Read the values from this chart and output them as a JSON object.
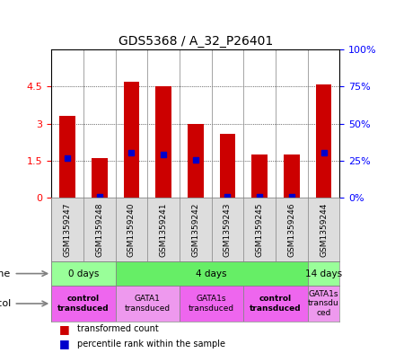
{
  "title": "GDS5368 / A_32_P26401",
  "samples": [
    "GSM1359247",
    "GSM1359248",
    "GSM1359240",
    "GSM1359241",
    "GSM1359242",
    "GSM1359243",
    "GSM1359245",
    "GSM1359246",
    "GSM1359244"
  ],
  "bar_values": [
    3.3,
    1.6,
    4.7,
    4.5,
    3.0,
    2.6,
    1.75,
    1.75,
    4.6
  ],
  "blue_values": [
    1.62,
    0.05,
    1.82,
    1.75,
    1.52,
    0.05,
    0.05,
    0.05,
    1.82
  ],
  "ylim_left": [
    0,
    6
  ],
  "ylim_right": [
    0,
    100
  ],
  "yticks_left": [
    0,
    1.5,
    3.0,
    4.5
  ],
  "yticks_right": [
    0,
    25,
    50,
    75,
    100
  ],
  "bar_color": "#cc0000",
  "blue_color": "#0000cc",
  "time_groups": [
    {
      "label": "0 days",
      "start": 0,
      "end": 2,
      "color": "#99ff99"
    },
    {
      "label": "4 days",
      "start": 2,
      "end": 8,
      "color": "#66ee66"
    },
    {
      "label": "14 days",
      "start": 8,
      "end": 9,
      "color": "#99ff99"
    }
  ],
  "protocol_groups": [
    {
      "label": "control\ntransduced",
      "start": 0,
      "end": 2,
      "color": "#ee66ee",
      "bold": true
    },
    {
      "label": "GATA1\ntransduced",
      "start": 2,
      "end": 4,
      "color": "#ee99ee",
      "bold": false
    },
    {
      "label": "GATA1s\ntransduced",
      "start": 4,
      "end": 6,
      "color": "#ee66ee",
      "bold": false
    },
    {
      "label": "control\ntransduced",
      "start": 6,
      "end": 8,
      "color": "#ee66ee",
      "bold": true
    },
    {
      "label": "GATA1s\ntransdu\nced",
      "start": 8,
      "end": 9,
      "color": "#ee99ee",
      "bold": false
    }
  ],
  "legend_red": "transformed count",
  "legend_blue": "percentile rank within the sample"
}
